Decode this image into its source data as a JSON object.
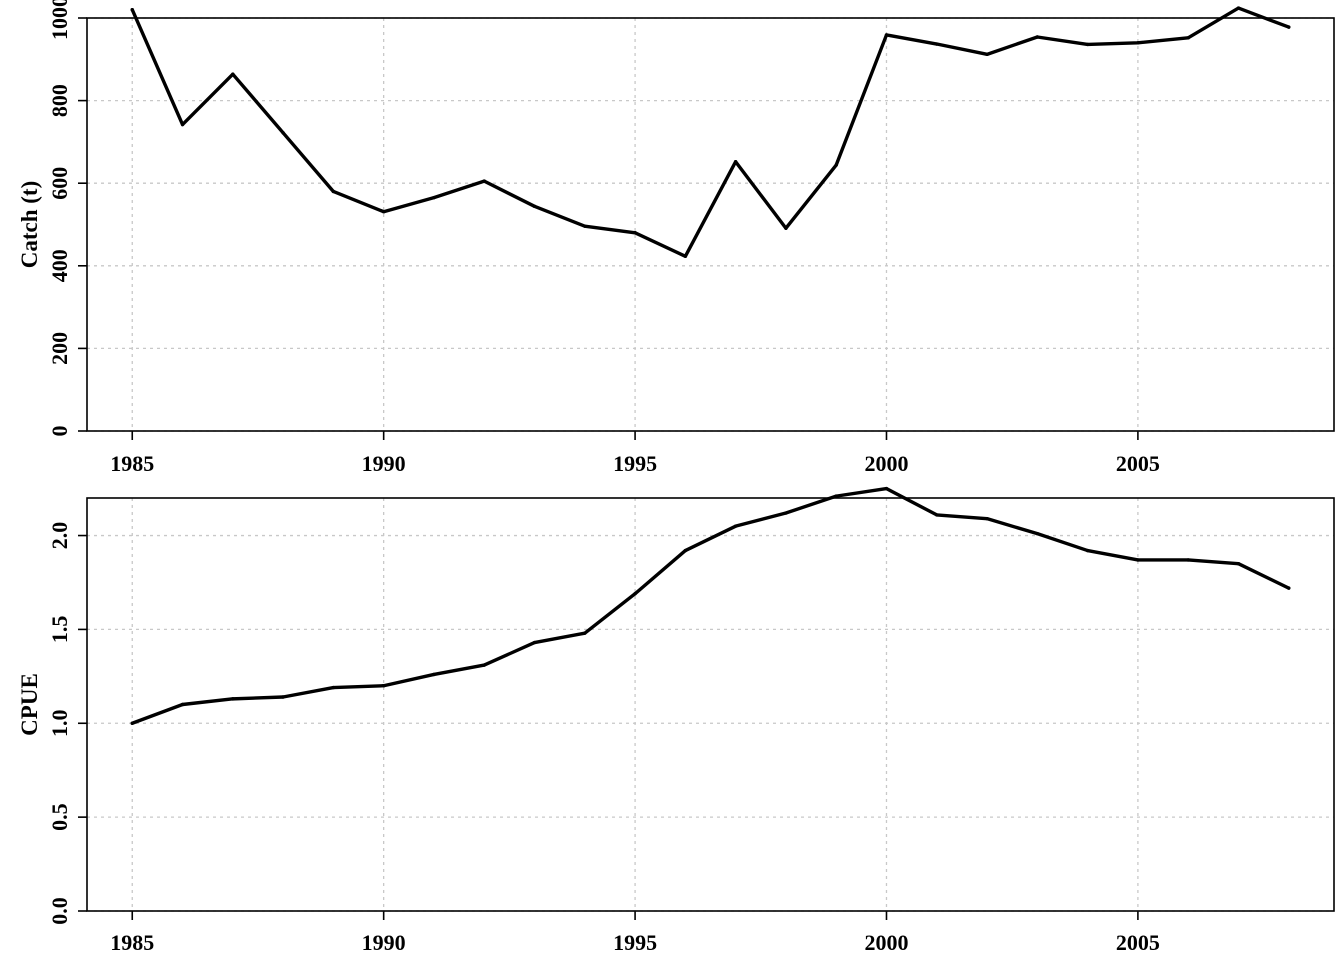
{
  "chart_data": [
    {
      "type": "line",
      "title": "",
      "xlabel": "",
      "ylabel": "Catch (t)",
      "xlim": [
        1984.1,
        2008.9
      ],
      "ylim": [
        0,
        1000
      ],
      "grid": true,
      "x_ticks": [
        "1985",
        "1990",
        "1995",
        "2000",
        "2005"
      ],
      "y_ticks": [
        "0",
        "200",
        "400",
        "600",
        "800",
        "1000"
      ],
      "series": [
        {
          "x": [
            1985,
            1986,
            1987,
            1988,
            1989,
            1990,
            1991,
            1992,
            1993,
            1994,
            1995,
            1996,
            1997,
            1998,
            1999,
            2000,
            2001,
            2002,
            2003,
            2004,
            2005,
            2006,
            2007,
            2008
          ],
          "values": [
            1020,
            742,
            864,
            722,
            580,
            531,
            565,
            605,
            544,
            496,
            480,
            423,
            652,
            491,
            644,
            959,
            937,
            912,
            954,
            936,
            940,
            952,
            1024,
            978
          ]
        }
      ]
    },
    {
      "type": "line",
      "title": "",
      "xlabel": "",
      "ylabel": "CPUE",
      "xlim": [
        1984.1,
        2008.9
      ],
      "ylim": [
        0,
        2.2
      ],
      "grid": true,
      "x_ticks": [
        "1985",
        "1990",
        "1995",
        "2000",
        "2005"
      ],
      "y_ticks": [
        "0.0",
        "0.5",
        "1.0",
        "1.5",
        "2.0"
      ],
      "series": [
        {
          "x": [
            1985,
            1986,
            1987,
            1988,
            1989,
            1990,
            1991,
            1992,
            1993,
            1994,
            1995,
            1996,
            1997,
            1998,
            1999,
            2000,
            2001,
            2002,
            2003,
            2004,
            2005,
            2006,
            2007,
            2008
          ],
          "values": [
            1.0,
            1.1,
            1.13,
            1.14,
            1.19,
            1.2,
            1.26,
            1.31,
            1.43,
            1.48,
            1.69,
            1.92,
            2.05,
            2.12,
            2.21,
            2.25,
            2.11,
            2.09,
            2.01,
            1.92,
            1.87,
            1.87,
            1.85,
            1.72
          ]
        }
      ]
    }
  ]
}
